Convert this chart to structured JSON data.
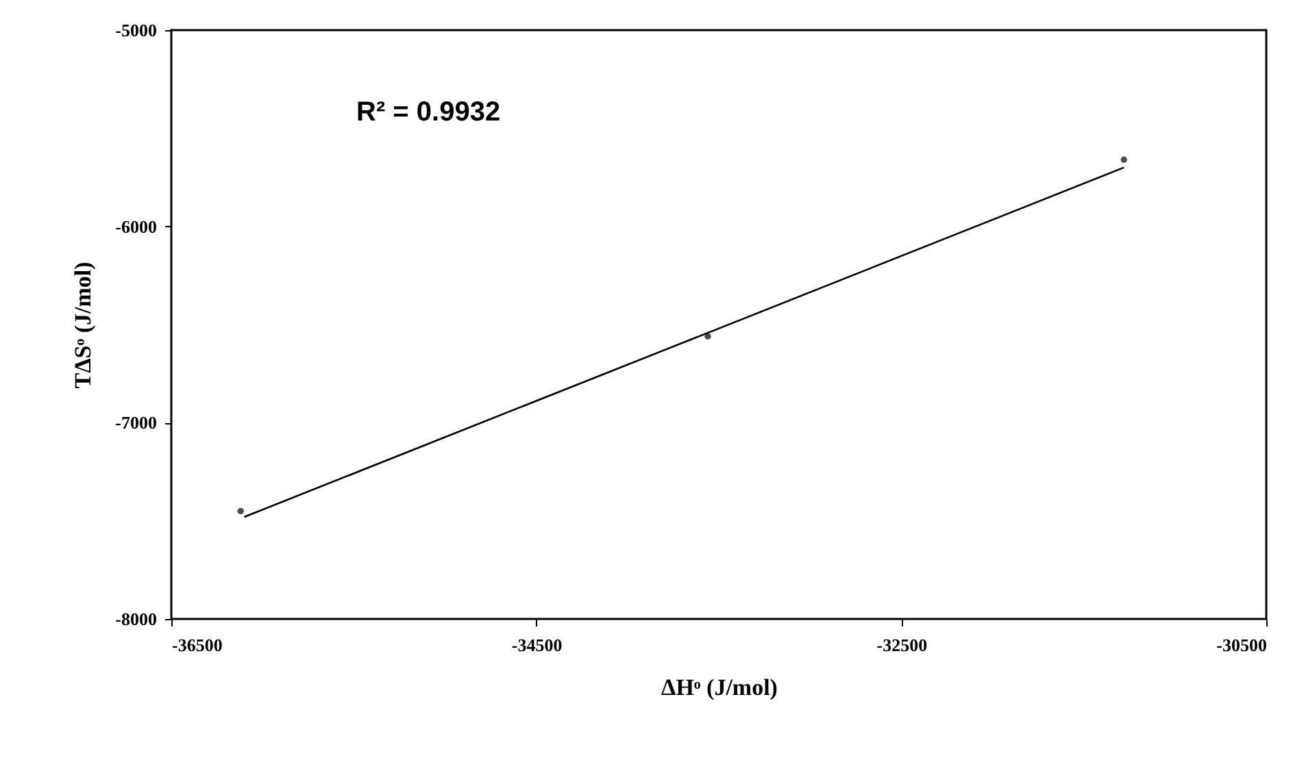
{
  "chart_data": {
    "type": "scatter",
    "xlabel": "ΔHᵒ (J/mol)",
    "ylabel": "TΔSᵒ (J/mol)",
    "annotations": [
      "R² = 0.9932"
    ],
    "series": [
      {
        "type": "scatter",
        "color": "#000000",
        "x": [
          -36120,
          -33560,
          -31280
        ],
        "values": [
          -7450,
          -6560,
          -5660
        ],
        "marker": "circle"
      },
      {
        "type": "line",
        "color": "#000000",
        "x": [
          -36100,
          -31280
        ],
        "values": [
          -7480,
          -5700
        ],
        "line_style": "solid"
      }
    ],
    "xlim": [
      -36500,
      -30500
    ],
    "xticks": [
      -36500,
      -34500,
      -32500,
      -30500
    ],
    "ylim": [
      -8000,
      -5000
    ],
    "yticks": [
      -8000,
      -7000,
      -6000,
      -5000
    ],
    "grid": false,
    "legend": false
  }
}
